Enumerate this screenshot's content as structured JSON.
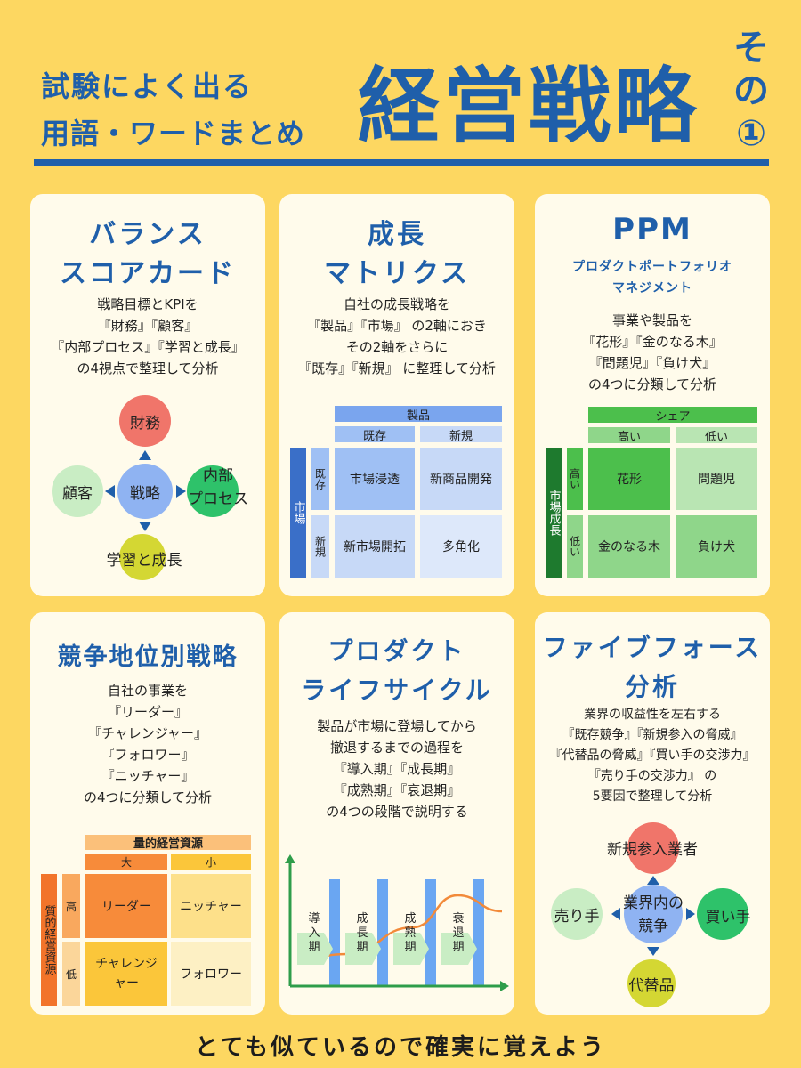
{
  "header": {
    "subtitle_line1": "試験によく出る",
    "subtitle_line2": "用語・ワードまとめ",
    "main_title": "経営戦略",
    "part_label_1": "そ",
    "part_label_2": "の",
    "part_label_3": "①"
  },
  "colors": {
    "background": "#fdd761",
    "accent_blue": "#1f5faa",
    "card": "#fffbeb"
  },
  "bsc": {
    "title_line1": "バランス",
    "title_line2": "スコアカード",
    "desc": [
      "戦略目標とKPIを",
      "『財務』『顧客』",
      "『内部プロセス』『学習と成長』",
      "の4視点で整理して分析"
    ],
    "center": "戦略",
    "top": "財務",
    "left": "顧客",
    "right_line1": "内部",
    "right_line2": "プロセス",
    "bottom": "学習と成長"
  },
  "growth": {
    "title_line1": "成長",
    "title_line2": "マトリクス",
    "desc": [
      "自社の成長戦略を",
      "『製品』『市場』 の2軸におき",
      "その2軸をさらに",
      "『既存』『新規』 に整理して分析"
    ],
    "product": "製品",
    "existing": "既存",
    "new": "新規",
    "market": "市場",
    "row_existing": "既存",
    "row_new": "新規",
    "cells": [
      "市場浸透",
      "新商品開発",
      "新市場開拓",
      "多角化"
    ]
  },
  "ppm": {
    "title": "PPM",
    "subtitle_line1": "プロダクトポートフォリオ",
    "subtitle_line2": "マネジメント",
    "desc": [
      "事業や製品を",
      "『花形』『金のなる木』",
      "『問題児』『負け犬』",
      "の4つに分類して分析"
    ],
    "share": "シェア",
    "high": "高い",
    "low": "低い",
    "growth_label": "市場成長",
    "row_high": "高い",
    "row_low": "低い",
    "cells": [
      "花形",
      "問題児",
      "金のなる木",
      "負け犬"
    ]
  },
  "competitive": {
    "title": "競争地位別戦略",
    "desc": [
      "自社の事業を",
      "『リーダー』",
      "『チャレンジャー』",
      "『フォロワー』",
      "『ニッチャー』",
      "の4つに分類して分析"
    ],
    "quantity": "量的経営資源",
    "large": "大",
    "small": "小",
    "quality": "質的経営資源",
    "row_high": "高",
    "row_low": "低",
    "leader": "リーダー",
    "nicher": "ニッチャー",
    "challenger_line1": "チャレンジ",
    "challenger_line2": "ャー",
    "follower": "フォロワー"
  },
  "plc": {
    "title_line1": "プロダクト",
    "title_line2": "ライフサイクル",
    "desc": [
      "製品が市場に登場してから",
      "撤退するまでの過程を",
      "『導入期』『成長期』",
      "『成熟期』『衰退期』",
      "の4つの段階で説明する"
    ],
    "stages": [
      "導入期",
      "成長期",
      "成熟期",
      "衰退期"
    ],
    "curve": [
      0.25,
      0.3,
      0.55,
      0.85,
      0.7
    ]
  },
  "five_forces": {
    "title_line1": "ファイブフォース",
    "title_line2": "分析",
    "desc": [
      "業界の収益性を左右する",
      "『既存競争』『新規参入の脅威』",
      "『代替品の脅威』『買い手の交渉力』",
      "『売り手の交渉力』 の",
      "5要因で整理して分析"
    ],
    "center_line1": "業界内の",
    "center_line2": "競争",
    "top": "新規参入業者",
    "left": "売り手",
    "right": "買い手",
    "bottom": "代替品"
  },
  "footer": "とても似ているので確実に覚えよう"
}
